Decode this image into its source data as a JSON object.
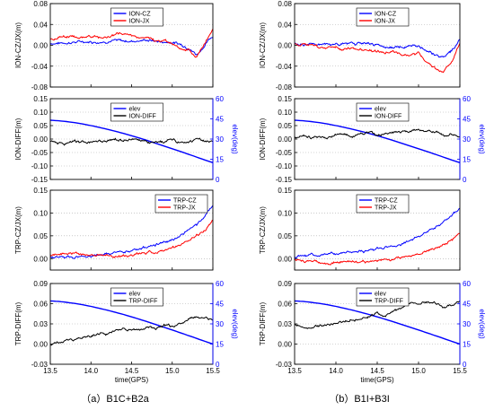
{
  "colors": {
    "blue": "#0000ff",
    "red": "#ff0000",
    "black": "#000000"
  },
  "captions": [
    "（a）B1C+B2a",
    "（b）B1I+B3I"
  ],
  "chart_data": [
    {
      "id": "a1",
      "type": "line",
      "ylabel": "ION-CZ/JX(m)",
      "x": [
        13.5,
        13.6,
        13.7,
        13.8,
        13.9,
        14.0,
        14.1,
        14.2,
        14.3,
        14.4,
        14.5,
        14.6,
        14.7,
        14.8,
        14.9,
        15.0,
        15.1,
        15.2,
        15.3,
        15.4,
        15.5
      ],
      "xlim": [
        13.5,
        15.5
      ],
      "xticks": [
        "13.5",
        "14.0",
        "14.5",
        "15.0",
        "15.5"
      ],
      "ylim": [
        -0.08,
        0.08
      ],
      "yticks": [
        "-0.08",
        "-0.04",
        "0.00",
        "0.04",
        "0.08"
      ],
      "legend_position": "top-center",
      "series": [
        {
          "name": "ION-CZ",
          "color": "#0000ff",
          "values": [
            0.004,
            0.004,
            0.005,
            0.006,
            0.007,
            0.007,
            0.006,
            0.008,
            0.009,
            0.008,
            0.008,
            0.009,
            0.01,
            0.008,
            0.006,
            0.006,
            0.002,
            -0.004,
            -0.018,
            0.0,
            0.018
          ]
        },
        {
          "name": "ION-JX",
          "color": "#ff0000",
          "values": [
            0.012,
            0.015,
            0.018,
            0.016,
            0.015,
            0.017,
            0.014,
            0.016,
            0.02,
            0.022,
            0.018,
            0.016,
            0.014,
            0.008,
            0.008,
            0.004,
            -0.006,
            -0.01,
            -0.022,
            0.005,
            0.03
          ]
        }
      ]
    },
    {
      "id": "a2",
      "type": "line",
      "ylabel": "ION-DIFF(m)",
      "y2label": "elev(deg)",
      "x": [
        13.5,
        13.6,
        13.7,
        13.8,
        13.9,
        14.0,
        14.1,
        14.2,
        14.3,
        14.4,
        14.5,
        14.6,
        14.7,
        14.8,
        14.9,
        15.0,
        15.1,
        15.2,
        15.3,
        15.4,
        15.5
      ],
      "xlim": [
        13.5,
        15.5
      ],
      "xticks": [
        "13.5",
        "14.0",
        "14.5",
        "15.0",
        "15.5"
      ],
      "ylim": [
        -0.15,
        0.15
      ],
      "yticks": [
        "-0.15",
        "-0.10",
        "-0.05",
        "0.00",
        "0.05",
        "0.10",
        "0.15"
      ],
      "y2lim": [
        0,
        60
      ],
      "y2ticks": [
        "0",
        "15",
        "30",
        "45",
        "60"
      ],
      "legend_position": "top-center",
      "series": [
        {
          "name": "elev",
          "color": "#0000ff",
          "axis": "right",
          "values": [
            44.0,
            43.6,
            43.0,
            42.2,
            41.2,
            40.0,
            38.7,
            37.3,
            35.8,
            34.2,
            32.5,
            30.7,
            28.8,
            26.8,
            24.8,
            22.8,
            20.8,
            18.7,
            16.6,
            14.5,
            12.5
          ]
        },
        {
          "name": "ION-DIFF",
          "color": "#000000",
          "axis": "left",
          "values": [
            -0.008,
            -0.012,
            -0.015,
            -0.01,
            -0.015,
            -0.012,
            -0.005,
            -0.01,
            -0.004,
            -0.002,
            0.0,
            -0.005,
            -0.015,
            -0.012,
            -0.01,
            -0.003,
            -0.014,
            -0.008,
            0.0,
            -0.012,
            -0.01
          ]
        }
      ]
    },
    {
      "id": "a3",
      "type": "line",
      "ylabel": "TRP-CZ/JX(m)",
      "x": [
        13.5,
        13.6,
        13.7,
        13.8,
        13.9,
        14.0,
        14.1,
        14.2,
        14.3,
        14.4,
        14.5,
        14.6,
        14.7,
        14.8,
        14.9,
        15.0,
        15.1,
        15.2,
        15.3,
        15.4,
        15.5
      ],
      "xlim": [
        13.5,
        15.5
      ],
      "xticks": [
        "13.5",
        "14.0",
        "14.5",
        "15.0",
        "15.5"
      ],
      "ylim": [
        -0.025,
        0.15
      ],
      "yticks": [
        "0.00",
        "0.05",
        "0.10",
        "0.15"
      ],
      "legend_position": "top-right",
      "series": [
        {
          "name": "TRP-CZ",
          "color": "#0000ff",
          "values": [
            0.002,
            0.003,
            0.004,
            0.004,
            0.006,
            0.006,
            0.008,
            0.01,
            0.012,
            0.014,
            0.018,
            0.022,
            0.026,
            0.03,
            0.036,
            0.042,
            0.052,
            0.062,
            0.074,
            0.09,
            0.115
          ]
        },
        {
          "name": "TRP-JX",
          "color": "#ff0000",
          "values": [
            0.008,
            0.01,
            0.012,
            0.01,
            0.008,
            0.006,
            0.008,
            0.006,
            0.006,
            0.006,
            0.008,
            0.01,
            0.012,
            0.014,
            0.018,
            0.022,
            0.03,
            0.04,
            0.05,
            0.06,
            0.085
          ]
        }
      ]
    },
    {
      "id": "a4",
      "type": "line",
      "ylabel": "TRP-DIFF(m)",
      "y2label": "elev(deg)",
      "x": [
        13.5,
        13.6,
        13.7,
        13.8,
        13.9,
        14.0,
        14.1,
        14.2,
        14.3,
        14.4,
        14.5,
        14.6,
        14.7,
        14.8,
        14.9,
        15.0,
        15.1,
        15.2,
        15.3,
        15.4,
        15.5
      ],
      "xlim": [
        13.5,
        15.5
      ],
      "xticks": [
        "13.5",
        "14.0",
        "14.5",
        "15.0",
        "15.5"
      ],
      "ylim": [
        -0.03,
        0.09
      ],
      "yticks": [
        "-0.03",
        "0.00",
        "0.03",
        "0.06",
        "0.09"
      ],
      "y2lim": [
        0,
        60
      ],
      "y2ticks": [
        "0",
        "15",
        "30",
        "45",
        "60"
      ],
      "xlabel": "time(GPS)",
      "legend_position": "top-center",
      "series": [
        {
          "name": "elev",
          "color": "#0000ff",
          "axis": "right",
          "values": [
            47.0,
            46.7,
            46.0,
            45.2,
            44.2,
            43.0,
            41.6,
            40.2,
            38.6,
            37.0,
            35.2,
            33.4,
            31.5,
            29.5,
            27.5,
            25.5,
            23.4,
            21.3,
            19.2,
            17.1,
            15.0
          ]
        },
        {
          "name": "TRP-DIFF",
          "color": "#000000",
          "axis": "left",
          "values": [
            -0.002,
            0.002,
            0.004,
            0.006,
            0.01,
            0.012,
            0.016,
            0.016,
            0.02,
            0.024,
            0.022,
            0.02,
            0.026,
            0.024,
            0.028,
            0.026,
            0.03,
            0.036,
            0.04,
            0.038,
            0.036
          ]
        }
      ]
    },
    {
      "id": "b1",
      "type": "line",
      "ylabel": "ION-CZ/JX(m)",
      "x": [
        13.5,
        13.6,
        13.7,
        13.8,
        13.9,
        14.0,
        14.1,
        14.2,
        14.3,
        14.4,
        14.5,
        14.6,
        14.7,
        14.8,
        14.9,
        15.0,
        15.1,
        15.2,
        15.3,
        15.4,
        15.5
      ],
      "xlim": [
        13.5,
        15.5
      ],
      "xticks": [
        "13.5",
        "14.0",
        "14.5",
        "15.0",
        "15.5"
      ],
      "ylim": [
        -0.08,
        0.08
      ],
      "yticks": [
        "-0.08",
        "-0.04",
        "0.00",
        "0.04",
        "0.08"
      ],
      "legend_position": "top-center",
      "series": [
        {
          "name": "ION-CZ",
          "color": "#0000ff",
          "values": [
            0.002,
            0.002,
            0.003,
            0.002,
            0.001,
            0.002,
            0.002,
            0.004,
            0.003,
            0.002,
            0.0,
            -0.002,
            -0.004,
            -0.003,
            0.0,
            -0.002,
            -0.01,
            -0.018,
            -0.022,
            -0.01,
            0.01
          ]
        },
        {
          "name": "ION-JX",
          "color": "#ff0000",
          "values": [
            0.004,
            0.002,
            0.0,
            -0.006,
            -0.004,
            -0.002,
            -0.008,
            -0.006,
            -0.01,
            -0.008,
            -0.01,
            -0.014,
            -0.012,
            -0.018,
            -0.02,
            -0.014,
            -0.03,
            -0.044,
            -0.052,
            -0.03,
            0.004
          ]
        }
      ]
    },
    {
      "id": "b2",
      "type": "line",
      "ylabel": "ION-DIFF(m)",
      "y2label": "elev(deg)",
      "x": [
        13.5,
        13.6,
        13.7,
        13.8,
        13.9,
        14.0,
        14.1,
        14.2,
        14.3,
        14.4,
        14.5,
        14.6,
        14.7,
        14.8,
        14.9,
        15.0,
        15.1,
        15.2,
        15.3,
        15.4,
        15.5
      ],
      "xlim": [
        13.5,
        15.5
      ],
      "xticks": [
        "13.5",
        "14.0",
        "14.5",
        "15.0",
        "15.5"
      ],
      "ylim": [
        -0.15,
        0.15
      ],
      "yticks": [
        "-0.15",
        "-0.10",
        "-0.05",
        "0.00",
        "0.05",
        "0.10",
        "0.15"
      ],
      "y2lim": [
        0,
        60
      ],
      "y2ticks": [
        "0",
        "15",
        "30",
        "45",
        "60"
      ],
      "legend_position": "top-center",
      "series": [
        {
          "name": "elev",
          "color": "#0000ff",
          "axis": "right",
          "values": [
            44.0,
            43.6,
            43.0,
            42.2,
            41.2,
            40.0,
            38.7,
            37.3,
            35.8,
            34.2,
            32.5,
            30.7,
            28.8,
            26.8,
            24.8,
            22.8,
            20.8,
            18.7,
            16.6,
            14.5,
            12.5
          ]
        },
        {
          "name": "ION-DIFF",
          "color": "#000000",
          "axis": "left",
          "values": [
            0.005,
            0.012,
            0.008,
            0.01,
            0.004,
            0.015,
            0.02,
            0.01,
            0.018,
            0.022,
            0.014,
            0.018,
            0.024,
            0.03,
            0.026,
            0.036,
            0.03,
            0.028,
            0.014,
            0.016,
            0.004
          ]
        }
      ]
    },
    {
      "id": "b3",
      "type": "line",
      "ylabel": "TRP-CZ/JX(m)",
      "x": [
        13.5,
        13.6,
        13.7,
        13.8,
        13.9,
        14.0,
        14.1,
        14.2,
        14.3,
        14.4,
        14.5,
        14.6,
        14.7,
        14.8,
        14.9,
        15.0,
        15.1,
        15.2,
        15.3,
        15.4,
        15.5
      ],
      "xlim": [
        13.5,
        15.5
      ],
      "xticks": [
        "13.5",
        "14.0",
        "14.5",
        "15.0",
        "15.5"
      ],
      "ylim": [
        -0.025,
        0.15
      ],
      "yticks": [
        "0.00",
        "0.05",
        "0.10",
        "0.15"
      ],
      "legend_position": "top-center",
      "series": [
        {
          "name": "TRP-CZ",
          "color": "#0000ff",
          "values": [
            0.002,
            0.004,
            0.006,
            0.006,
            0.01,
            0.012,
            0.014,
            0.016,
            0.016,
            0.018,
            0.022,
            0.026,
            0.028,
            0.032,
            0.04,
            0.048,
            0.056,
            0.068,
            0.08,
            0.095,
            0.11
          ]
        },
        {
          "name": "TRP-JX",
          "color": "#ff0000",
          "values": [
            -0.004,
            -0.006,
            -0.005,
            -0.008,
            -0.01,
            -0.008,
            -0.006,
            -0.004,
            -0.008,
            -0.006,
            -0.004,
            0.0,
            -0.004,
            0.002,
            0.006,
            0.01,
            0.018,
            0.022,
            0.03,
            0.04,
            0.055
          ]
        }
      ]
    },
    {
      "id": "b4",
      "type": "line",
      "ylabel": "TRP-DIFF(m)",
      "y2label": "elev(deg)",
      "x": [
        13.5,
        13.6,
        13.7,
        13.8,
        13.9,
        14.0,
        14.1,
        14.2,
        14.3,
        14.4,
        14.5,
        14.6,
        14.7,
        14.8,
        14.9,
        15.0,
        15.1,
        15.2,
        15.3,
        15.4,
        15.5
      ],
      "xlim": [
        13.5,
        15.5
      ],
      "xticks": [
        "13.5",
        "14.0",
        "14.5",
        "15.0",
        "15.5"
      ],
      "ylim": [
        -0.03,
        0.09
      ],
      "yticks": [
        "-0.03",
        "0.00",
        "0.03",
        "0.06",
        "0.09"
      ],
      "y2lim": [
        0,
        60
      ],
      "y2ticks": [
        "0",
        "15",
        "30",
        "45",
        "60"
      ],
      "xlabel": "time(GPS)",
      "legend_position": "top-center",
      "series": [
        {
          "name": "elev",
          "color": "#0000ff",
          "axis": "right",
          "values": [
            47.0,
            46.7,
            46.0,
            45.2,
            44.2,
            43.0,
            41.6,
            40.2,
            38.6,
            37.0,
            35.2,
            33.4,
            31.5,
            29.5,
            27.5,
            25.5,
            23.4,
            21.3,
            19.2,
            17.1,
            15.0
          ]
        },
        {
          "name": "TRP-DIFF",
          "color": "#000000",
          "axis": "left",
          "values": [
            0.03,
            0.026,
            0.024,
            0.028,
            0.03,
            0.03,
            0.034,
            0.036,
            0.038,
            0.04,
            0.046,
            0.042,
            0.05,
            0.055,
            0.06,
            0.058,
            0.064,
            0.062,
            0.054,
            0.058,
            0.062
          ]
        }
      ]
    }
  ]
}
